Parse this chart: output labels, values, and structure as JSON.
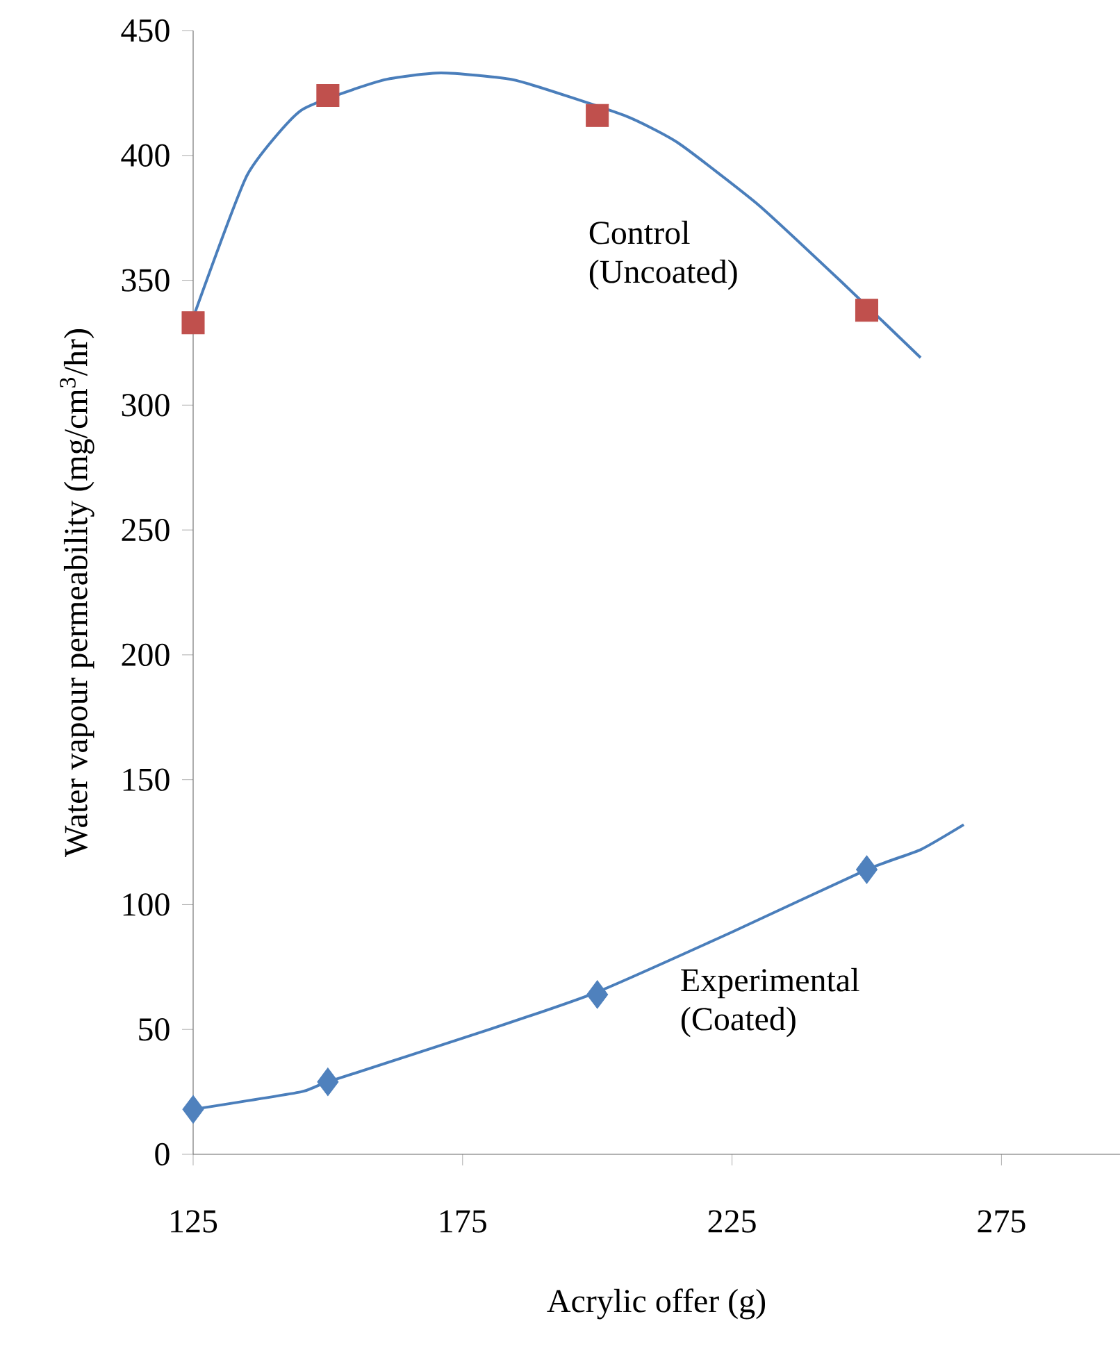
{
  "chart_data": {
    "type": "scatter",
    "xlabel": "Acrylic offer (g)",
    "ylabel": "Water vapour permeability (mg/cm$^{3}$/hr)",
    "xlim": [
      125,
      297
    ],
    "xticks": [
      125,
      175,
      225,
      275
    ],
    "ylim": [
      0,
      450
    ],
    "yticks": [
      0,
      50,
      100,
      150,
      200,
      250,
      300,
      350,
      400,
      450
    ],
    "grid": false,
    "series": [
      {
        "type": "line",
        "color": "#4a7ebb",
        "marker": "none",
        "x": [
          125,
          135,
          145,
          160,
          171,
          185,
          205,
          215,
          230,
          245,
          260
        ],
        "values": [
          335,
          392,
          418,
          430,
          433,
          430,
          416,
          405,
          380,
          350,
          319
        ]
      },
      {
        "type": "line",
        "color": "#4a7ebb",
        "marker": "none",
        "x": [
          125,
          145,
          150,
          180,
          200,
          225,
          250,
          260,
          268
        ],
        "values": [
          18,
          25,
          29,
          50,
          65,
          89,
          114,
          122,
          132
        ]
      },
      {
        "name": "Control (Uncoated)",
        "color": "#c0504d",
        "marker": "square",
        "x": [
          125,
          150,
          200,
          250
        ],
        "values": [
          333,
          424,
          416,
          338
        ]
      },
      {
        "name": "Experimental (Coated)",
        "color": "#4f81bd",
        "marker": "diamond",
        "x": [
          125,
          150,
          200,
          250
        ],
        "values": [
          18,
          29,
          64,
          114
        ]
      }
    ]
  }
}
